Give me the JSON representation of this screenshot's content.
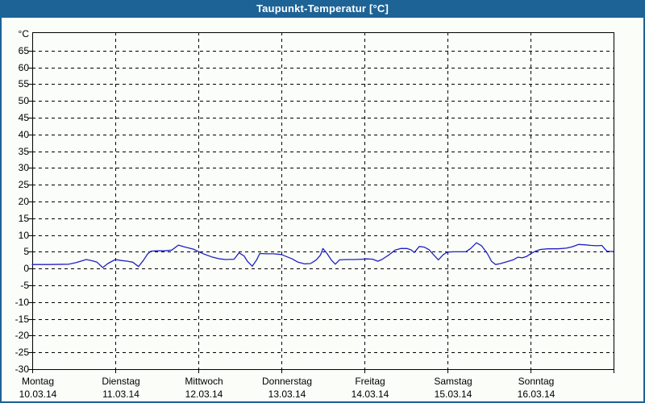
{
  "window": {
    "title": "Taupunkt-Temperatur [°C]"
  },
  "colors": {
    "titlebar": "#1d6396",
    "window_border": "#1d6396",
    "background": "#fbfdf9",
    "axis": "#000000",
    "grid": "#000000",
    "text": "#000000",
    "line": "#2020c4"
  },
  "chart_data": {
    "type": "line",
    "title": "Taupunkt-Temperatur [°C]",
    "xlabel": "",
    "ylabel": "°C",
    "ylim": [
      -30,
      70.5
    ],
    "yticks": [
      65,
      60,
      55,
      50,
      45,
      40,
      35,
      30,
      25,
      20,
      15,
      10,
      5,
      0,
      -5,
      -10,
      -15,
      -20,
      -25,
      -30
    ],
    "grid": "dashed",
    "legend_position": "none",
    "x_unit": "days (0 = Montag 10.03.14 00:00)",
    "days": [
      {
        "name": "Montag",
        "date": "10.03.14"
      },
      {
        "name": "Dienstag",
        "date": "11.03.14"
      },
      {
        "name": "Mittwoch",
        "date": "12.03.14"
      },
      {
        "name": "Donnerstag",
        "date": "13.03.14"
      },
      {
        "name": "Freitag",
        "date": "14.03.14"
      },
      {
        "name": "Samstag",
        "date": "15.03.14"
      },
      {
        "name": "Sonntag",
        "date": "16.03.14"
      }
    ],
    "series": [
      {
        "name": "Taupunkt-Temperatur",
        "color": "#2020c4",
        "points": [
          [
            0.0,
            1.2
          ],
          [
            0.19,
            1.2
          ],
          [
            0.44,
            1.3
          ],
          [
            0.53,
            1.8
          ],
          [
            0.65,
            2.7
          ],
          [
            0.73,
            2.3
          ],
          [
            0.78,
            1.9
          ],
          [
            0.85,
            0.3
          ],
          [
            0.91,
            1.5
          ],
          [
            1.0,
            2.7
          ],
          [
            1.07,
            2.4
          ],
          [
            1.15,
            2.2
          ],
          [
            1.21,
            1.9
          ],
          [
            1.28,
            0.6
          ],
          [
            1.34,
            2.5
          ],
          [
            1.39,
            4.4
          ],
          [
            1.43,
            5.2
          ],
          [
            1.5,
            5.3
          ],
          [
            1.6,
            5.3
          ],
          [
            1.68,
            5.5
          ],
          [
            1.76,
            7.0
          ],
          [
            1.83,
            6.5
          ],
          [
            1.94,
            5.8
          ],
          [
            2.0,
            5.1
          ],
          [
            2.07,
            4.3
          ],
          [
            2.16,
            3.5
          ],
          [
            2.26,
            2.9
          ],
          [
            2.33,
            2.7
          ],
          [
            2.43,
            2.8
          ],
          [
            2.49,
            4.7
          ],
          [
            2.55,
            3.8
          ],
          [
            2.59,
            2.2
          ],
          [
            2.65,
            0.7
          ],
          [
            2.7,
            2.5
          ],
          [
            2.74,
            4.5
          ],
          [
            2.82,
            4.4
          ],
          [
            2.91,
            4.4
          ],
          [
            3.0,
            4.2
          ],
          [
            3.07,
            3.5
          ],
          [
            3.13,
            2.9
          ],
          [
            3.2,
            1.9
          ],
          [
            3.28,
            1.4
          ],
          [
            3.35,
            1.5
          ],
          [
            3.42,
            2.6
          ],
          [
            3.47,
            4.0
          ],
          [
            3.5,
            6.0
          ],
          [
            3.55,
            4.5
          ],
          [
            3.6,
            2.6
          ],
          [
            3.65,
            1.3
          ],
          [
            3.7,
            2.6
          ],
          [
            3.79,
            2.7
          ],
          [
            3.88,
            2.7
          ],
          [
            3.97,
            2.8
          ],
          [
            4.03,
            2.9
          ],
          [
            4.1,
            2.8
          ],
          [
            4.16,
            2.2
          ],
          [
            4.21,
            2.7
          ],
          [
            4.29,
            4.0
          ],
          [
            4.37,
            5.5
          ],
          [
            4.44,
            6.0
          ],
          [
            4.51,
            6.0
          ],
          [
            4.56,
            5.6
          ],
          [
            4.6,
            4.8
          ],
          [
            4.66,
            6.6
          ],
          [
            4.72,
            6.4
          ],
          [
            4.78,
            5.6
          ],
          [
            4.83,
            4.2
          ],
          [
            4.89,
            2.6
          ],
          [
            4.95,
            4.2
          ],
          [
            5.0,
            4.9
          ],
          [
            5.07,
            5.0
          ],
          [
            5.22,
            5.0
          ],
          [
            5.28,
            6.0
          ],
          [
            5.35,
            7.7
          ],
          [
            5.41,
            6.8
          ],
          [
            5.48,
            4.5
          ],
          [
            5.53,
            2.2
          ],
          [
            5.58,
            1.2
          ],
          [
            5.64,
            1.5
          ],
          [
            5.71,
            2.0
          ],
          [
            5.79,
            2.6
          ],
          [
            5.85,
            3.4
          ],
          [
            5.9,
            3.2
          ],
          [
            5.95,
            3.6
          ],
          [
            6.0,
            4.4
          ],
          [
            6.06,
            5.2
          ],
          [
            6.12,
            5.7
          ],
          [
            6.21,
            5.9
          ],
          [
            6.33,
            5.9
          ],
          [
            6.43,
            6.1
          ],
          [
            6.5,
            6.5
          ],
          [
            6.58,
            7.2
          ],
          [
            6.65,
            7.1
          ],
          [
            6.73,
            6.9
          ],
          [
            6.8,
            6.8
          ],
          [
            6.86,
            6.9
          ],
          [
            6.89,
            6.0
          ],
          [
            6.92,
            5.2
          ],
          [
            6.96,
            5.1
          ],
          [
            7.0,
            5.1
          ]
        ]
      }
    ]
  }
}
